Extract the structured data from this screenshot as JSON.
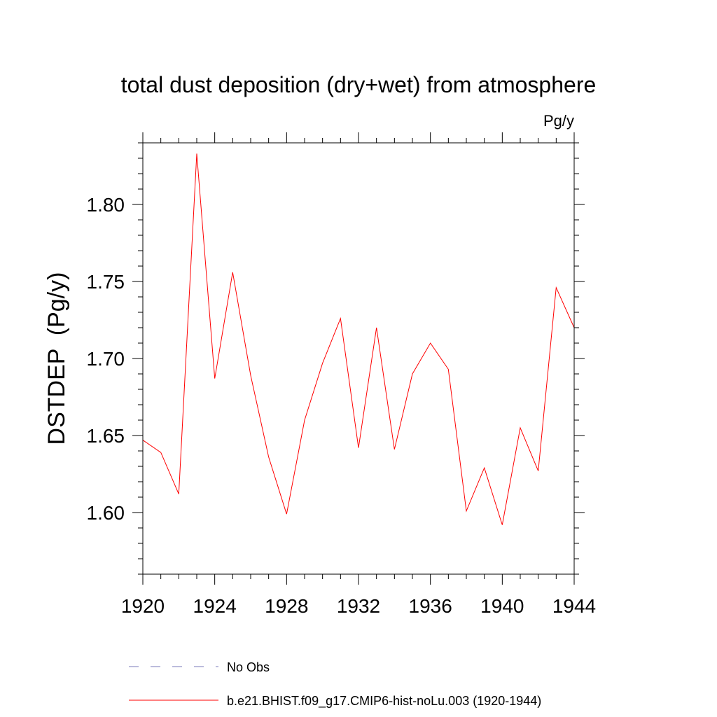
{
  "chart_data": {
    "type": "line",
    "title": "total dust deposition (dry+wet) from atmosphere",
    "units_label": "Pg/y",
    "ylabel": "DSTDEP  (Pg/y)",
    "xlabel": "",
    "xlim": [
      1920,
      1944
    ],
    "ylim": [
      1.56,
      1.84
    ],
    "x_ticks": [
      1920,
      1924,
      1928,
      1932,
      1936,
      1940,
      1944
    ],
    "x_tick_labels": [
      "1920",
      "1924",
      "1928",
      "1932",
      "1936",
      "1940",
      "1944"
    ],
    "y_ticks": [
      1.6,
      1.65,
      1.7,
      1.75,
      1.8
    ],
    "y_tick_labels": [
      "1.60",
      "1.65",
      "1.70",
      "1.75",
      "1.80"
    ],
    "grid": false,
    "legend_position": "bottom",
    "series": [
      {
        "name": "b.e21.BHIST.f09_g17.CMIP6-hist-noLu.003 (1920-1944)",
        "color": "#ff0000",
        "style": "solid",
        "x": [
          1920,
          1921,
          1922,
          1923,
          1924,
          1925,
          1926,
          1927,
          1928,
          1929,
          1930,
          1931,
          1932,
          1933,
          1934,
          1935,
          1936,
          1937,
          1938,
          1939,
          1940,
          1941,
          1942,
          1943,
          1944
        ],
        "y": [
          1.647,
          1.639,
          1.612,
          1.833,
          1.687,
          1.756,
          1.689,
          1.636,
          1.599,
          1.66,
          1.697,
          1.726,
          1.642,
          1.72,
          1.641,
          1.69,
          1.71,
          1.693,
          1.601,
          1.629,
          1.592,
          1.655,
          1.627,
          1.746,
          1.72
        ]
      }
    ],
    "legend": [
      {
        "label": "No Obs",
        "color": "#7a7ab8",
        "style": "dashed"
      },
      {
        "label": "b.e21.BHIST.f09_g17.CMIP6-hist-noLu.003 (1920-1944)",
        "color": "#ff0000",
        "style": "solid"
      }
    ]
  }
}
